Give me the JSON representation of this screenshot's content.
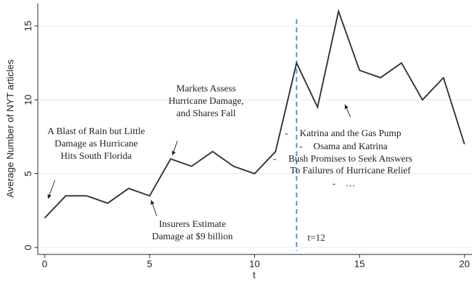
{
  "chart_data": {
    "type": "line",
    "x": [
      0,
      1,
      2,
      3,
      4,
      5,
      6,
      7,
      8,
      9,
      10,
      11,
      12,
      13,
      14,
      15,
      16,
      17,
      18,
      19,
      20
    ],
    "series": [
      {
        "name": "Average Number of NYT articles",
        "color": "#333333",
        "values": [
          2,
          3.5,
          3.5,
          3,
          4,
          3.5,
          6,
          5.5,
          6.5,
          5.5,
          5,
          6.5,
          12.5,
          9.5,
          16,
          12,
          11.5,
          12.5,
          10,
          11.5,
          7
        ]
      }
    ],
    "xlabel": "t",
    "ylabel": "Average Number of NYT articles",
    "xlim": [
      -0.33,
      20.36
    ],
    "ylim": [
      -0.47,
      16.53
    ],
    "xticks": [
      0,
      5,
      10,
      15,
      20
    ],
    "yticks": [
      0,
      5,
      10,
      15
    ],
    "grid": true,
    "vline": {
      "x": 12,
      "label": "t=12",
      "color": "#4a90d9"
    },
    "annotations": [
      {
        "lines": [
          "A Blast of Rain but Little",
          "Damage as Hurricane",
          "Hits South Florida"
        ]
      },
      {
        "lines": [
          "Markets Assess",
          "Hurricane Damage,",
          "and Shares Fall"
        ]
      },
      {
        "lines": [
          "Insurers Estimate",
          "Damage at $9 billion"
        ]
      }
    ],
    "bullets": [
      {
        "mark": "-",
        "lines": [
          "Katrina and the Gas Pump"
        ]
      },
      {
        "mark": "-",
        "lines": [
          "Osama and Katrina"
        ]
      },
      {
        "mark": "-",
        "lines": [
          "Bush Promises to Seek Answers",
          "To Failures of Hurricane Relief"
        ]
      },
      {
        "mark": "-",
        "lines": [
          "…"
        ]
      }
    ]
  }
}
